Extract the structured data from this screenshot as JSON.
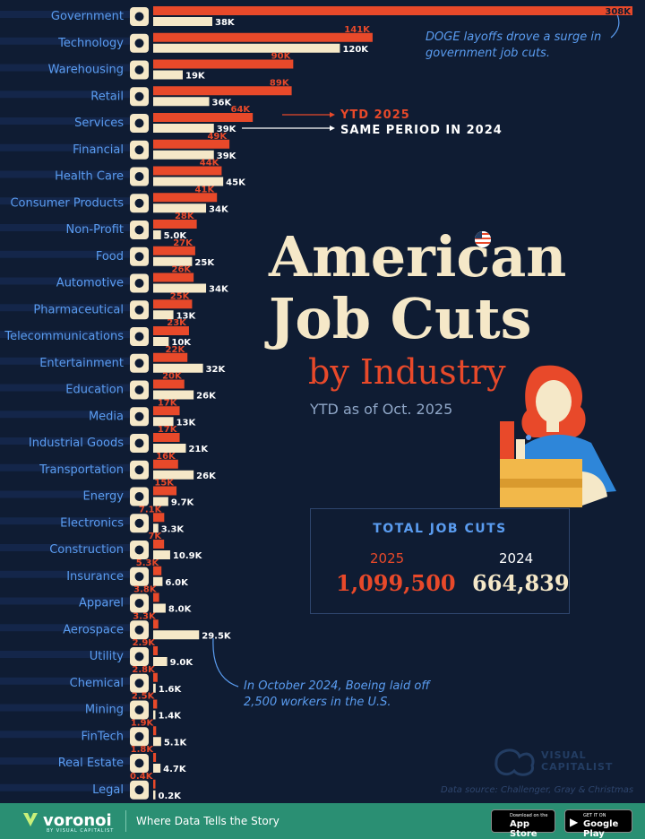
{
  "chart_data": {
    "type": "bar",
    "title_line1": "American",
    "title_line2": "Job Cuts",
    "title_line3": "by Industry",
    "subtitle": "YTD as of Oct. 2025",
    "series": [
      {
        "name": "YTD 2025",
        "color": "#e8492a"
      },
      {
        "name": "SAME PERIOD IN 2024",
        "color": "#f5e8c8"
      }
    ],
    "categories": [
      {
        "name": "Government",
        "icon": "bank-icon",
        "v2025": 308,
        "l2025": "308K",
        "v2024": 38,
        "l2024": "38K"
      },
      {
        "name": "Technology",
        "icon": "phone-icon",
        "v2025": 141,
        "l2025": "141K",
        "v2024": 120,
        "l2024": "120K"
      },
      {
        "name": "Warehousing",
        "icon": "boxes-icon",
        "v2025": 90,
        "l2025": "90K",
        "v2024": 19,
        "l2024": "19K"
      },
      {
        "name": "Retail",
        "icon": "cart-icon",
        "v2025": 89,
        "l2025": "89K",
        "v2024": 36,
        "l2024": "36K"
      },
      {
        "name": "Services",
        "icon": "handshake-icon",
        "v2025": 64,
        "l2025": "64K",
        "v2024": 39,
        "l2024": "39K"
      },
      {
        "name": "Financial",
        "icon": "dollar-icon",
        "v2025": 49,
        "l2025": "49K",
        "v2024": 39,
        "l2024": "39K"
      },
      {
        "name": "Health Care",
        "icon": "heart-icon",
        "v2025": 44,
        "l2025": "44K",
        "v2024": 45,
        "l2024": "45K"
      },
      {
        "name": "Consumer Products",
        "icon": "bag-icon",
        "v2025": 41,
        "l2025": "41K",
        "v2024": 34,
        "l2024": "34K"
      },
      {
        "name": "Non-Profit",
        "icon": "globe-icon",
        "v2025": 28,
        "l2025": "28K",
        "v2024": 5.0,
        "l2024": "5.0K"
      },
      {
        "name": "Food",
        "icon": "utensils-icon",
        "v2025": 27,
        "l2025": "27K",
        "v2024": 25,
        "l2024": "25K"
      },
      {
        "name": "Automotive",
        "icon": "car-icon",
        "v2025": 26,
        "l2025": "26K",
        "v2024": 34,
        "l2024": "34K"
      },
      {
        "name": "Pharmaceutical",
        "icon": "pill-icon",
        "v2025": 25,
        "l2025": "25K",
        "v2024": 13,
        "l2024": "13K"
      },
      {
        "name": "Telecommunications",
        "icon": "headset-icon",
        "v2025": 23,
        "l2025": "23K",
        "v2024": 10,
        "l2024": "10K"
      },
      {
        "name": "Entertainment",
        "icon": "clapper-icon",
        "v2025": 22,
        "l2025": "22K",
        "v2024": 32,
        "l2024": "32K"
      },
      {
        "name": "Education",
        "icon": "graduation-icon",
        "v2025": 20,
        "l2025": "20K",
        "v2024": 26,
        "l2024": "26K"
      },
      {
        "name": "Media",
        "icon": "play-icon",
        "v2025": 17,
        "l2025": "17K",
        "v2024": 13,
        "l2024": "13K"
      },
      {
        "name": "Industrial Goods",
        "icon": "factory-icon",
        "v2025": 17,
        "l2025": "17K",
        "v2024": 21,
        "l2024": "21K"
      },
      {
        "name": "Transportation",
        "icon": "truck-icon",
        "v2025": 16,
        "l2025": "16K",
        "v2024": 26,
        "l2024": "26K"
      },
      {
        "name": "Energy",
        "icon": "bolt-icon",
        "v2025": 15,
        "l2025": "15K",
        "v2024": 9.7,
        "l2024": "9.7K"
      },
      {
        "name": "Electronics",
        "icon": "plug-icon",
        "v2025": 7.1,
        "l2025": "7.1K",
        "v2024": 3.3,
        "l2024": "3.3K"
      },
      {
        "name": "Construction",
        "icon": "helmet-icon",
        "v2025": 7,
        "l2025": "7K",
        "v2024": 10.9,
        "l2024": "10.9K"
      },
      {
        "name": "Insurance",
        "icon": "shield-icon",
        "v2025": 5.3,
        "l2025": "5.3K",
        "v2024": 6.0,
        "l2024": "6.0K"
      },
      {
        "name": "Apparel",
        "icon": "shirt-icon",
        "v2025": 3.8,
        "l2025": "3.8K",
        "v2024": 8.0,
        "l2024": "8.0K"
      },
      {
        "name": "Aerospace",
        "icon": "plane-icon",
        "v2025": 3.3,
        "l2025": "3.3K",
        "v2024": 29.5,
        "l2024": "29.5K"
      },
      {
        "name": "Utility",
        "icon": "tools-icon",
        "v2025": 2.9,
        "l2025": "2.9K",
        "v2024": 9.0,
        "l2024": "9.0K"
      },
      {
        "name": "Chemical",
        "icon": "molecule-icon",
        "v2025": 2.8,
        "l2025": "2.8K",
        "v2024": 1.6,
        "l2024": "1.6K"
      },
      {
        "name": "Mining",
        "icon": "pickaxe-icon",
        "v2025": 2.5,
        "l2025": "2.5K",
        "v2024": 1.4,
        "l2024": "1.4K"
      },
      {
        "name": "FinTech",
        "icon": "coin-icon",
        "v2025": 1.9,
        "l2025": "1.9K",
        "v2024": 5.1,
        "l2024": "5.1K"
      },
      {
        "name": "Real Estate",
        "icon": "house-icon",
        "v2025": 1.8,
        "l2025": "1.8K",
        "v2024": 4.7,
        "l2024": "4.7K"
      },
      {
        "name": "Legal",
        "icon": "gavel-icon",
        "v2025": 0.4,
        "l2025": "0.4K",
        "v2024": 0.2,
        "l2024": "0.2K"
      }
    ],
    "annotations": {
      "doge": "DOGE layoffs drove a surge in government job cuts.",
      "boeing": "In October 2024, Boeing laid off 2,500 workers in the U.S."
    },
    "legend_2025": "YTD 2025",
    "legend_2024": "SAME PERIOD IN 2024"
  },
  "totals": {
    "title": "TOTAL JOB CUTS",
    "year_2025": "2025",
    "year_2024": "2024",
    "value_2025": "1,099,500",
    "value_2024": "664,839"
  },
  "branding": {
    "logo": "VISUAL CAPITALIST",
    "source": "Data source: Challenger, Gray & Christmas",
    "voronoi": "voronoi",
    "voronoi_sub": "BY VISUAL CAPITALIST",
    "tagline": "Where Data Tells the Story",
    "appstore_small": "Download on the",
    "appstore_big": "App Store",
    "googleplay_small": "GET IT ON",
    "googleplay_big": "Google Play"
  },
  "colors": {
    "background": "#0f1c33",
    "bar_2025": "#e8492a",
    "bar_2024": "#f5e8c8",
    "label_blue": "#5a9cf0",
    "footer": "#2a8f73"
  }
}
